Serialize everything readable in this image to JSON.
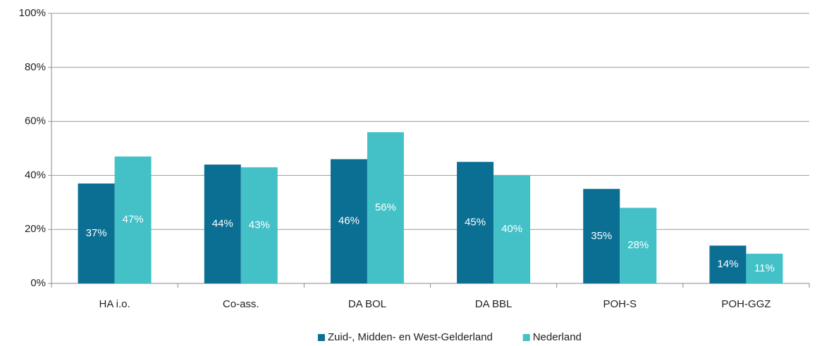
{
  "chart_data": {
    "type": "bar",
    "categories": [
      "HA i.o.",
      "Co-ass.",
      "DA BOL",
      "DA BBL",
      "POH-S",
      "POH-GGZ"
    ],
    "series": [
      {
        "name": "Zuid-, Midden- en West-Gelderland",
        "color": "#0b6f94",
        "values": [
          37,
          44,
          46,
          45,
          35,
          14
        ],
        "value_labels": [
          "37%",
          "44%",
          "46%",
          "45%",
          "35%",
          "14%"
        ]
      },
      {
        "name": "Nederland",
        "color": "#43c1c7",
        "values": [
          47,
          43,
          56,
          40,
          28,
          11
        ],
        "value_labels": [
          "47%",
          "43%",
          "56%",
          "40%",
          "28%",
          "11%"
        ]
      }
    ],
    "ylim": [
      0,
      100
    ],
    "yticks": [
      {
        "value": 0,
        "label": "0%"
      },
      {
        "value": 20,
        "label": "20%"
      },
      {
        "value": 40,
        "label": "40%"
      },
      {
        "value": 60,
        "label": "60%"
      },
      {
        "value": 80,
        "label": "80%"
      },
      {
        "value": 100,
        "label": "100%"
      }
    ],
    "grid": true,
    "legend": "bottom"
  }
}
